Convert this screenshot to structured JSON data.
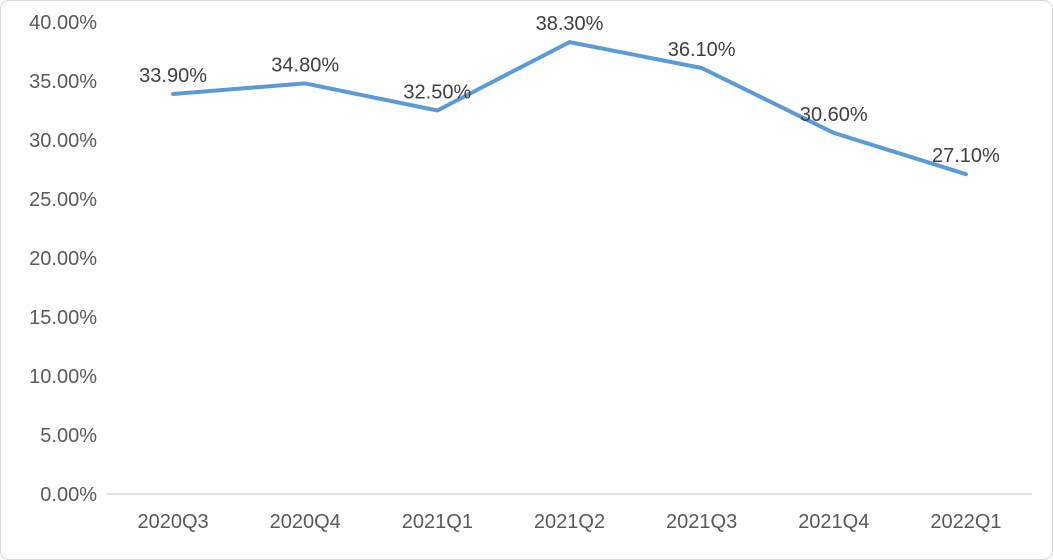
{
  "chart": {
    "background_color": "#FFFFFF",
    "frame_border_color": "#D9D9D9",
    "axis_line_color": "#D9D9D9",
    "series_color": "#5B9BD5",
    "tick_label_color": "#595959",
    "data_label_color": "#404040"
  },
  "chart_data": {
    "type": "line",
    "title": "",
    "xlabel": "",
    "ylabel": "",
    "categories": [
      "2020Q3",
      "2020Q4",
      "2021Q1",
      "2021Q2",
      "2021Q3",
      "2021Q4",
      "2022Q1"
    ],
    "series": [
      {
        "name": "",
        "values": [
          33.9,
          34.8,
          32.5,
          38.3,
          36.1,
          30.6,
          27.1
        ],
        "data_labels": [
          "33.90%",
          "34.80%",
          "32.50%",
          "38.30%",
          "36.10%",
          "30.60%",
          "27.10%"
        ],
        "color": "#5B9BD5"
      }
    ],
    "ylim": [
      0,
      40
    ],
    "y_ticks": [
      0,
      5,
      10,
      15,
      20,
      25,
      30,
      35,
      40
    ],
    "y_tick_labels": [
      "0.00%",
      "5.00%",
      "10.00%",
      "15.00%",
      "20.00%",
      "25.00%",
      "30.00%",
      "35.00%",
      "40.00%"
    ],
    "grid": false,
    "legend": false,
    "data_labels_position": "above"
  }
}
